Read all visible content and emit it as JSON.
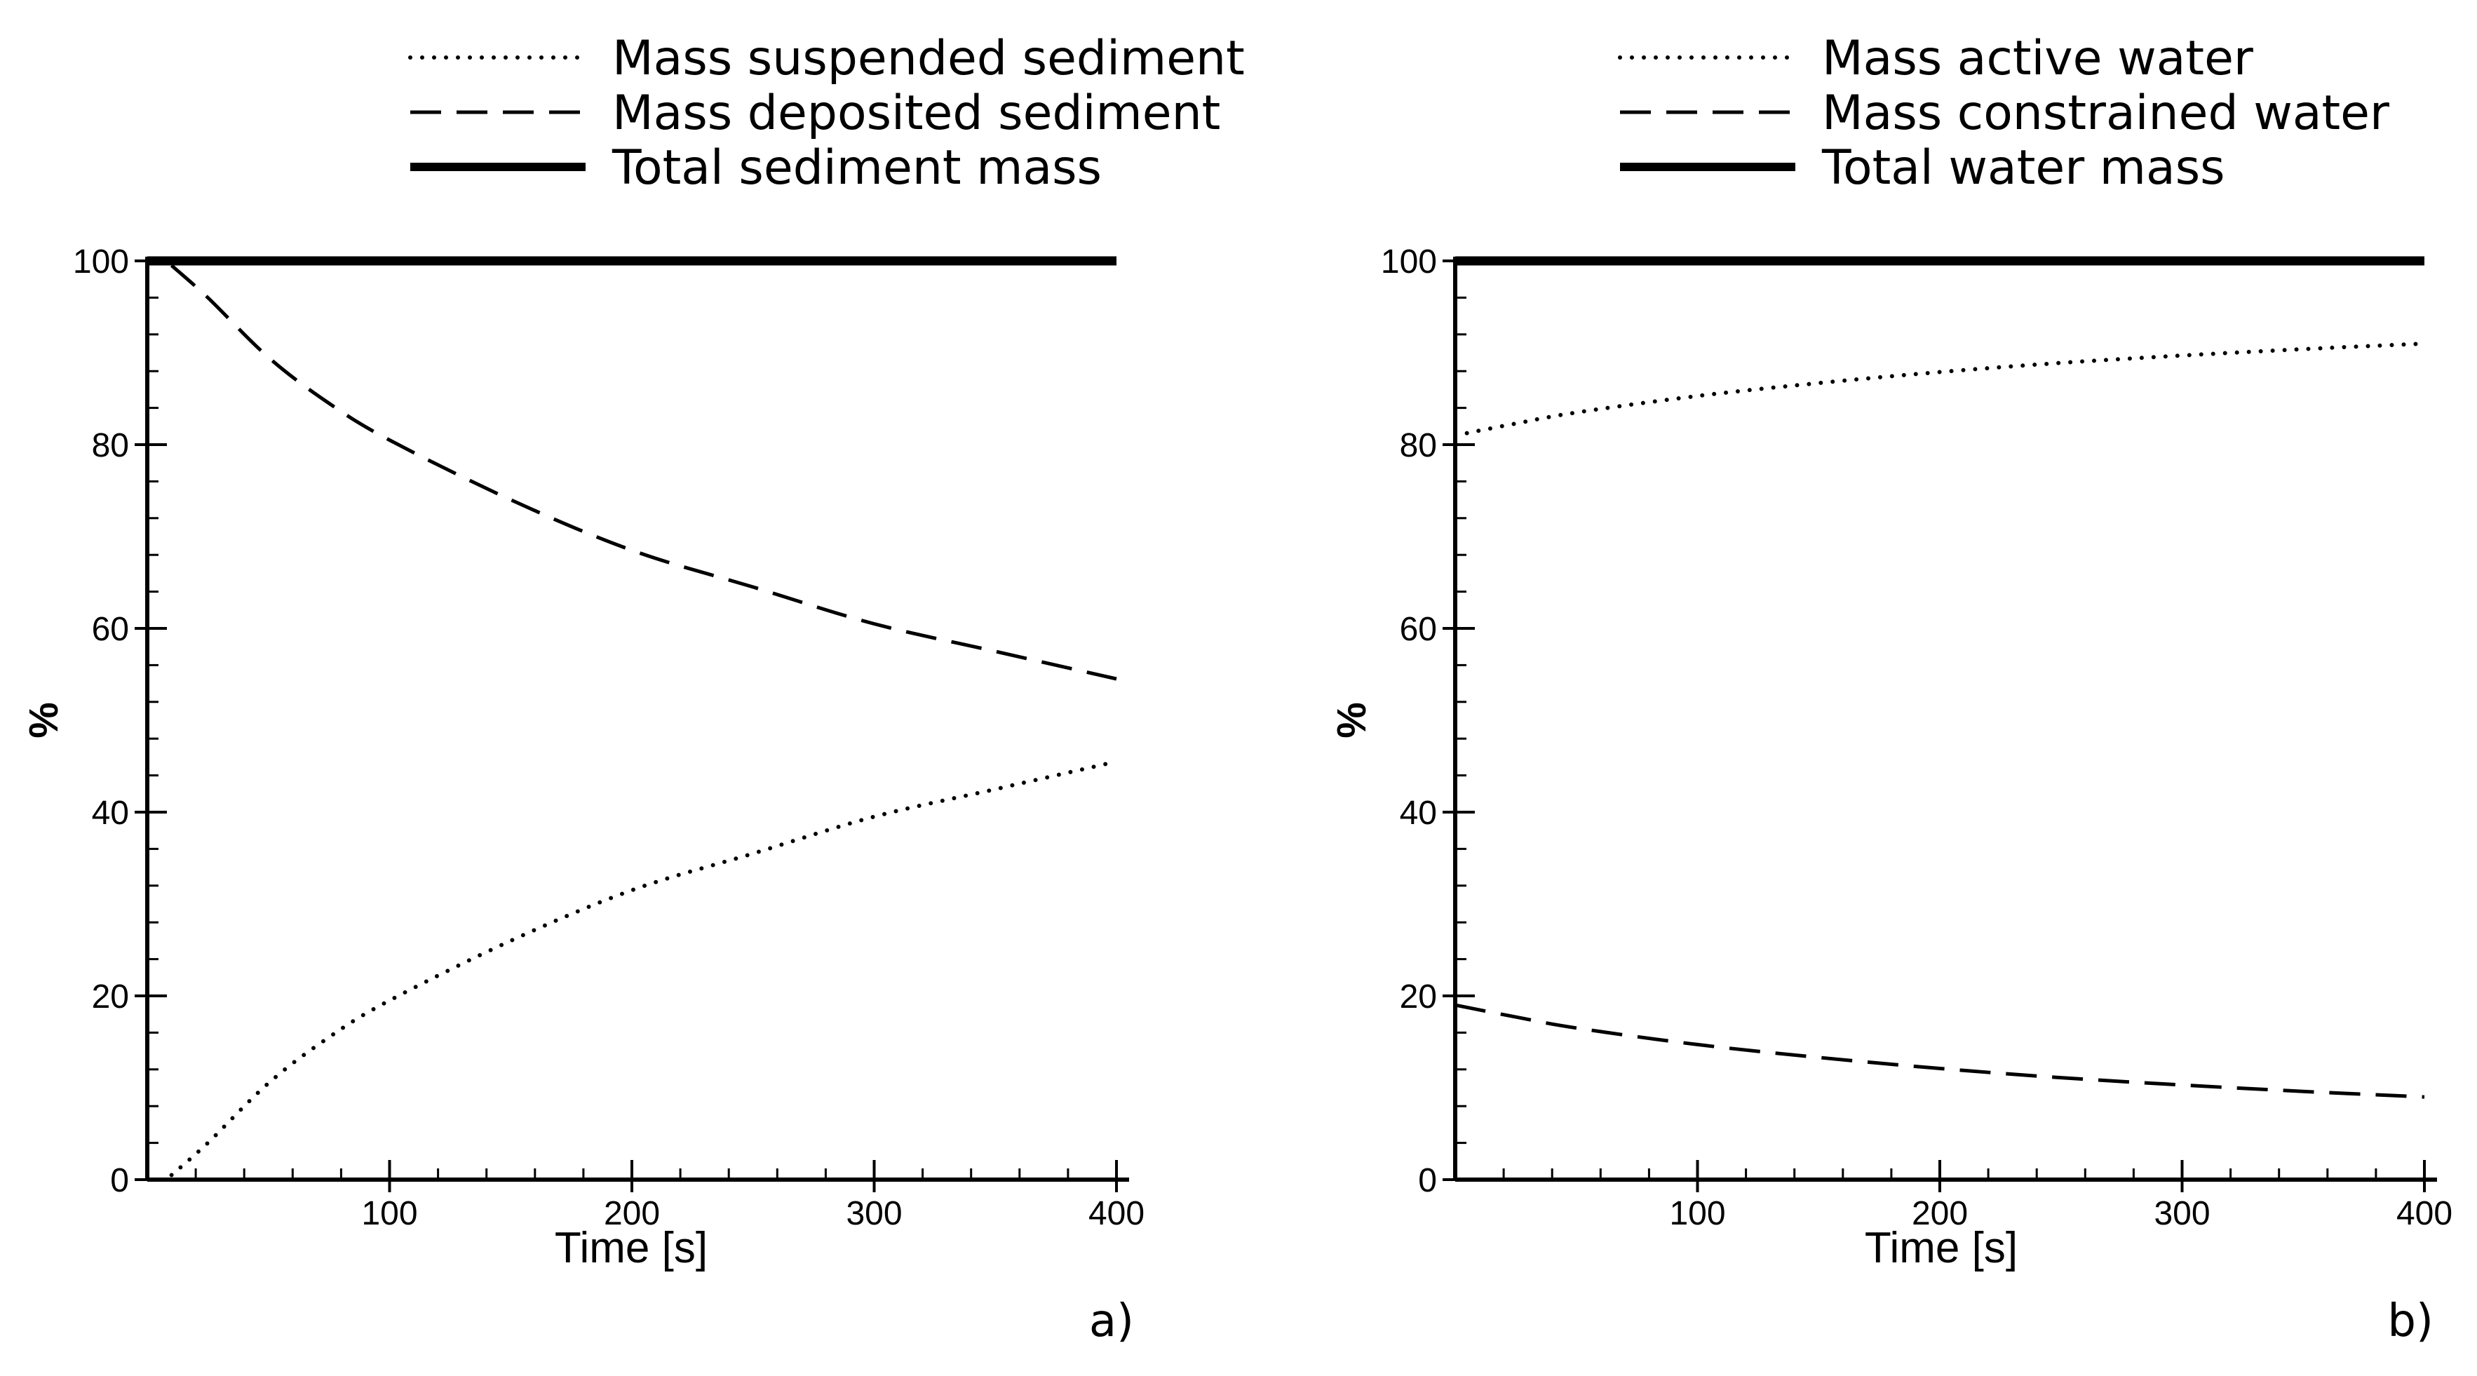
{
  "chart_data": [
    {
      "type": "line",
      "panel_label": "a)",
      "xlabel": "Time [s]",
      "ylabel": "%",
      "xlim": [
        0,
        400
      ],
      "ylim": [
        0,
        100
      ],
      "x_ticks": [
        100,
        200,
        300,
        400
      ],
      "y_ticks": [
        0,
        20,
        40,
        60,
        80,
        100
      ],
      "legend_position": "top",
      "series": [
        {
          "name": "Mass suspended sediment",
          "style": "dotted",
          "x": [
            10,
            25,
            50,
            75,
            100,
            150,
            200,
            250,
            300,
            350,
            400
          ],
          "values": [
            0.5,
            4,
            10.5,
            15.5,
            19.5,
            26,
            31.5,
            35.5,
            39.5,
            42.5,
            45.5
          ]
        },
        {
          "name": "Mass deposited sediment",
          "style": "dashed",
          "x": [
            10,
            25,
            50,
            75,
            100,
            150,
            200,
            250,
            300,
            350,
            400
          ],
          "values": [
            99.5,
            96,
            89.5,
            84.5,
            80.5,
            74,
            68.5,
            64.5,
            60.5,
            57.5,
            54.5
          ]
        },
        {
          "name": "Total sediment mass",
          "style": "solid",
          "x": [
            0,
            400
          ],
          "values": [
            100,
            100
          ]
        }
      ]
    },
    {
      "type": "line",
      "panel_label": "b)",
      "xlabel": "Time [s]",
      "ylabel": "%",
      "xlim": [
        0,
        400
      ],
      "ylim": [
        0,
        100
      ],
      "x_ticks": [
        100,
        200,
        300,
        400
      ],
      "y_ticks": [
        0,
        20,
        40,
        60,
        80,
        100
      ],
      "legend_position": "top",
      "series": [
        {
          "name": "Mass active water",
          "style": "dotted",
          "x": [
            0,
            25,
            50,
            100,
            150,
            200,
            250,
            300,
            350,
            400
          ],
          "values": [
            81,
            82.3,
            83.5,
            85.3,
            86.7,
            87.9,
            88.9,
            89.7,
            90.4,
            91
          ]
        },
        {
          "name": "Mass constrained water",
          "style": "dashed",
          "x": [
            0,
            25,
            50,
            100,
            150,
            200,
            250,
            300,
            350,
            400
          ],
          "values": [
            19,
            17.7,
            16.5,
            14.7,
            13.3,
            12.1,
            11.1,
            10.3,
            9.6,
            9
          ]
        },
        {
          "name": "Total water mass",
          "style": "solid",
          "x": [
            0,
            400
          ],
          "values": [
            100,
            100
          ]
        }
      ]
    }
  ]
}
